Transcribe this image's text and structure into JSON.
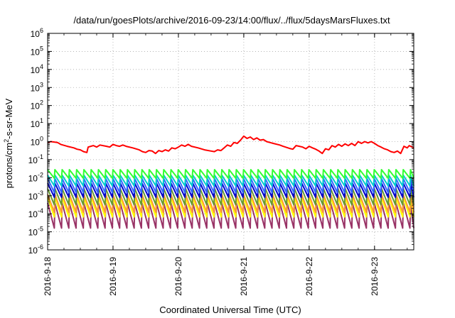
{
  "chart_data": {
    "type": "line",
    "title": "/data/run/goesPlots/archive/2016-09-23/14:00/flux/../flux/5daysMarsFluxes.txt",
    "xlabel": "Coordinated Universal Time (UTC)",
    "ylabel_parts": [
      "protons/cm",
      "2",
      "-s-sr-MeV"
    ],
    "yscale": "log",
    "ylim_exp": [
      -6,
      6
    ],
    "xlim_days": [
      0,
      5.6
    ],
    "grid": true,
    "xticks": [
      {
        "day": 0,
        "label": "2016-9-18"
      },
      {
        "day": 1,
        "label": "2016-9-19"
      },
      {
        "day": 2,
        "label": "2016-9-20"
      },
      {
        "day": 3,
        "label": "2016-9-21"
      },
      {
        "day": 4,
        "label": "2016-9-22"
      },
      {
        "day": 5,
        "label": "2016-9-23"
      }
    ],
    "red_series": {
      "color": "#ff0000",
      "points": [
        [
          0.0,
          0.9
        ],
        [
          0.05,
          1.0
        ],
        [
          0.15,
          0.9
        ],
        [
          0.2,
          0.7
        ],
        [
          0.3,
          0.55
        ],
        [
          0.4,
          0.45
        ],
        [
          0.45,
          0.38
        ],
        [
          0.5,
          0.35
        ],
        [
          0.55,
          0.28
        ],
        [
          0.6,
          0.25
        ],
        [
          0.62,
          0.5
        ],
        [
          0.7,
          0.6
        ],
        [
          0.75,
          0.5
        ],
        [
          0.8,
          0.65
        ],
        [
          0.9,
          0.55
        ],
        [
          0.95,
          0.5
        ],
        [
          1.0,
          0.7
        ],
        [
          1.05,
          0.6
        ],
        [
          1.1,
          0.55
        ],
        [
          1.15,
          0.65
        ],
        [
          1.2,
          0.55
        ],
        [
          1.3,
          0.45
        ],
        [
          1.4,
          0.35
        ],
        [
          1.45,
          0.28
        ],
        [
          1.5,
          0.25
        ],
        [
          1.55,
          0.32
        ],
        [
          1.6,
          0.3
        ],
        [
          1.65,
          0.22
        ],
        [
          1.7,
          0.32
        ],
        [
          1.75,
          0.28
        ],
        [
          1.8,
          0.35
        ],
        [
          1.85,
          0.3
        ],
        [
          1.9,
          0.45
        ],
        [
          1.95,
          0.4
        ],
        [
          2.0,
          0.5
        ],
        [
          2.05,
          0.65
        ],
        [
          2.1,
          0.55
        ],
        [
          2.15,
          0.7
        ],
        [
          2.2,
          0.55
        ],
        [
          2.3,
          0.45
        ],
        [
          2.4,
          0.35
        ],
        [
          2.5,
          0.3
        ],
        [
          2.55,
          0.28
        ],
        [
          2.6,
          0.35
        ],
        [
          2.65,
          0.32
        ],
        [
          2.7,
          0.45
        ],
        [
          2.75,
          0.65
        ],
        [
          2.8,
          0.55
        ],
        [
          2.85,
          0.9
        ],
        [
          2.9,
          0.8
        ],
        [
          2.95,
          1.2
        ],
        [
          3.0,
          2.0
        ],
        [
          3.05,
          1.5
        ],
        [
          3.1,
          1.8
        ],
        [
          3.15,
          1.3
        ],
        [
          3.2,
          1.6
        ],
        [
          3.25,
          1.2
        ],
        [
          3.3,
          1.3
        ],
        [
          3.35,
          1.0
        ],
        [
          3.45,
          0.8
        ],
        [
          3.55,
          0.65
        ],
        [
          3.6,
          0.55
        ],
        [
          3.65,
          0.48
        ],
        [
          3.7,
          0.42
        ],
        [
          3.75,
          0.38
        ],
        [
          3.8,
          0.6
        ],
        [
          3.85,
          0.55
        ],
        [
          3.9,
          0.5
        ],
        [
          3.95,
          0.4
        ],
        [
          4.0,
          0.55
        ],
        [
          4.05,
          0.45
        ],
        [
          4.1,
          0.38
        ],
        [
          4.15,
          0.3
        ],
        [
          4.2,
          0.22
        ],
        [
          4.25,
          0.4
        ],
        [
          4.3,
          0.35
        ],
        [
          4.35,
          0.6
        ],
        [
          4.4,
          0.5
        ],
        [
          4.45,
          0.7
        ],
        [
          4.5,
          0.55
        ],
        [
          4.55,
          0.75
        ],
        [
          4.6,
          0.6
        ],
        [
          4.65,
          0.8
        ],
        [
          4.7,
          0.6
        ],
        [
          4.75,
          1.0
        ],
        [
          4.8,
          0.8
        ],
        [
          4.85,
          1.0
        ],
        [
          4.9,
          0.85
        ],
        [
          4.95,
          1.0
        ],
        [
          5.0,
          0.8
        ],
        [
          5.05,
          0.6
        ],
        [
          5.1,
          0.5
        ],
        [
          5.15,
          0.4
        ],
        [
          5.2,
          0.35
        ],
        [
          5.25,
          0.28
        ],
        [
          5.3,
          0.25
        ],
        [
          5.35,
          0.3
        ],
        [
          5.4,
          0.22
        ],
        [
          5.45,
          0.55
        ],
        [
          5.5,
          0.45
        ],
        [
          5.53,
          0.6
        ],
        [
          5.6,
          0.45
        ]
      ]
    },
    "sawtooth_series": [
      {
        "color": "#33ff33",
        "peak": 0.028,
        "ratio": 3
      },
      {
        "color": "#00cccc",
        "peak": 0.014,
        "ratio": 4
      },
      {
        "color": "#3366ff",
        "peak": 0.009,
        "ratio": 6
      },
      {
        "color": "#0000cc",
        "peak": 0.005,
        "ratio": 6
      },
      {
        "color": "#669933",
        "peak": 0.0025,
        "ratio": 8
      },
      {
        "color": "#ff9933",
        "peak": 0.0012,
        "ratio": 10
      },
      {
        "color": "#ffff00",
        "peak": 0.0008,
        "ratio": 12
      },
      {
        "color": "#993366",
        "peak": 0.0004,
        "ratio": 25
      }
    ],
    "sawtooth_period_days": 0.111
  }
}
